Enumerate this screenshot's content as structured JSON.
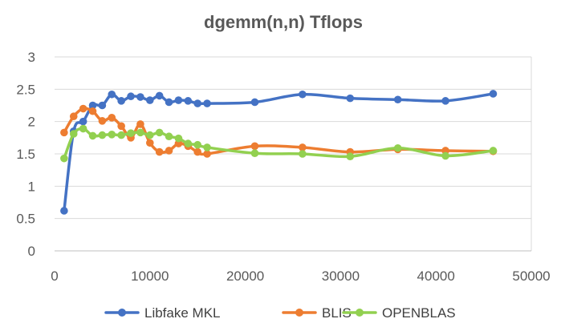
{
  "chart_data": {
    "type": "line",
    "title": "dgemm(n,n) Tflops",
    "xlabel": "",
    "ylabel": "",
    "xlim": [
      0,
      50000
    ],
    "ylim": [
      0,
      3
    ],
    "x_ticks": [
      0,
      10000,
      20000,
      30000,
      40000,
      50000
    ],
    "y_ticks": [
      0,
      0.5,
      1,
      1.5,
      2,
      2.5,
      3
    ],
    "x_tick_labels": [
      "0",
      "10000",
      "20000",
      "30000",
      "40000",
      "50000"
    ],
    "y_tick_labels": [
      "0",
      "0.5",
      "1",
      "1.5",
      "2",
      "2.5",
      "3"
    ],
    "grid": {
      "horizontal": true,
      "vertical": false
    },
    "legend_position": "bottom",
    "series": [
      {
        "name": "Libfake MKL",
        "color": "#4472C4",
        "x": [
          1000,
          2000,
          3000,
          4000,
          5000,
          6000,
          7000,
          8000,
          9000,
          10000,
          11000,
          12000,
          13000,
          14000,
          15000,
          16000,
          21000,
          26000,
          31000,
          36000,
          41000,
          46000
        ],
        "y": [
          0.62,
          1.85,
          2.0,
          2.25,
          2.25,
          2.42,
          2.32,
          2.39,
          2.38,
          2.33,
          2.4,
          2.3,
          2.33,
          2.32,
          2.28,
          2.28,
          2.3,
          2.42,
          2.36,
          2.34,
          2.32,
          2.43
        ]
      },
      {
        "name": "BLIS",
        "color": "#ED7D31",
        "x": [
          1000,
          2000,
          3000,
          4000,
          5000,
          6000,
          7000,
          8000,
          9000,
          10000,
          11000,
          12000,
          13000,
          14000,
          15000,
          16000,
          21000,
          26000,
          31000,
          36000,
          41000,
          46000
        ],
        "y": [
          1.83,
          2.08,
          2.2,
          2.16,
          2.01,
          2.06,
          1.93,
          1.75,
          1.96,
          1.67,
          1.53,
          1.55,
          1.66,
          1.62,
          1.53,
          1.5,
          1.62,
          1.6,
          1.53,
          1.57,
          1.55,
          1.54
        ]
      },
      {
        "name": "OPENBLAS",
        "color": "#92D050",
        "x": [
          1000,
          2000,
          3000,
          4000,
          5000,
          6000,
          7000,
          8000,
          9000,
          10000,
          11000,
          12000,
          13000,
          14000,
          15000,
          16000,
          21000,
          26000,
          31000,
          36000,
          41000,
          46000
        ],
        "y": [
          1.43,
          1.81,
          1.89,
          1.78,
          1.79,
          1.8,
          1.79,
          1.82,
          1.83,
          1.79,
          1.83,
          1.77,
          1.74,
          1.66,
          1.64,
          1.6,
          1.51,
          1.5,
          1.46,
          1.59,
          1.47,
          1.55
        ]
      }
    ]
  }
}
